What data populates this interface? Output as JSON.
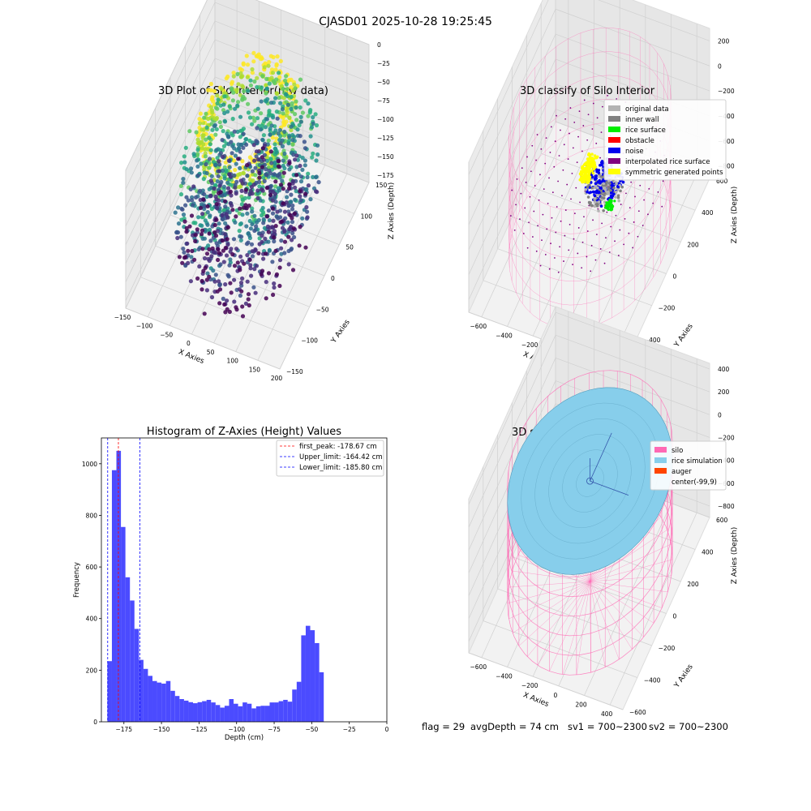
{
  "suptitle": "CJASD01 2025-10-28 19:25:45",
  "footer": {
    "flag": "flag = 29",
    "avg_depth": "avgDepth = 74 cm",
    "sv1": "sv1 = 700~2300",
    "sv2": "sv2 = 700~2300"
  },
  "colors": {
    "histogram": "#4b4bff",
    "first_peak_line": "#ff0000",
    "limit_line": "#0000ff",
    "silo": "#ff69b4",
    "rice_simulation": "#87ceeb",
    "auger": "#ff4500",
    "classify_original": "#b3b3b3",
    "classify_inner_wall": "#808080",
    "classify_rice_surface": "#00ee00",
    "classify_obstacle": "#ff0000",
    "classify_noise": "#0000ee",
    "classify_interpolated": "#800080",
    "classify_symmetric": "#ffff00"
  },
  "chart_data": [
    {
      "id": "raw",
      "type": "scatter",
      "projection": "3d",
      "title": "3D Plot of Silo Interior(row data)",
      "xlabel": "X Axies",
      "ylabel": "Y Axies",
      "zlabel": "Z Axies (Depth)",
      "xlim": [
        -150,
        200
      ],
      "ylim": [
        -150,
        150
      ],
      "zlim": [
        -185,
        0
      ],
      "x_ticks": [
        -150,
        -100,
        -50,
        0,
        50,
        100,
        150,
        200
      ],
      "y_ticks": [
        -150,
        -100,
        -50,
        0,
        50,
        100,
        150
      ],
      "z_ticks": [
        0,
        -25,
        -50,
        -75,
        -100,
        -125,
        -150,
        -175
      ],
      "colormap": "viridis",
      "grid": true
    },
    {
      "id": "classify",
      "type": "scatter",
      "projection": "3d",
      "title": "3D classify of Silo Interior",
      "xlabel": "X Axies",
      "ylabel": "Y Axies",
      "zlabel": "Z Axies (Depth)",
      "xlim": [
        -700,
        500
      ],
      "ylim": [
        -600,
        600
      ],
      "zlim": [
        -900,
        300
      ],
      "x_ticks": [
        -600,
        -400,
        -200,
        0,
        200,
        400
      ],
      "y_ticks": [
        -600,
        -400,
        -200,
        0,
        200,
        400,
        600
      ],
      "z_ticks": [
        200,
        0,
        -200,
        -400,
        -600,
        -800
      ],
      "legend_position": "upper-right",
      "legend": [
        {
          "label": "original data",
          "color": "#b3b3b3"
        },
        {
          "label": "inner wall",
          "color": "#808080"
        },
        {
          "label": "rice surface",
          "color": "#00ee00"
        },
        {
          "label": "obstacle",
          "color": "#ff0000"
        },
        {
          "label": "noise",
          "color": "#0000ee"
        },
        {
          "label": "interpolated rice surface",
          "color": "#800080"
        },
        {
          "label": "symmetric generated points",
          "color": "#ffff00"
        }
      ],
      "grid": true
    },
    {
      "id": "hist",
      "type": "bar",
      "title": "Histogram of Z-Axies (Height) Values",
      "xlabel": "Depth (cm)",
      "ylabel": "Frequency",
      "xlim": [
        -190,
        0
      ],
      "ylim": [
        0,
        1100
      ],
      "x_ticks": [
        -175,
        -150,
        -125,
        -100,
        -75,
        -50,
        -25,
        0
      ],
      "y_ticks": [
        0,
        200,
        400,
        600,
        800,
        1000
      ],
      "bin_start": -186,
      "bin_width": 3,
      "values": [
        235,
        975,
        1050,
        755,
        560,
        470,
        360,
        240,
        205,
        178,
        158,
        152,
        148,
        158,
        120,
        100,
        88,
        82,
        76,
        72,
        76,
        80,
        85,
        75,
        65,
        55,
        62,
        88,
        70,
        60,
        75,
        70,
        52,
        60,
        62,
        62,
        75,
        75,
        80,
        85,
        78,
        125,
        155,
        335,
        372,
        355,
        305,
        192
      ],
      "vlines": [
        {
          "x": -178.67,
          "label": "first_peak: -178.67 cm",
          "color": "#ff0000"
        },
        {
          "x": -164.42,
          "label": "Upper_limit: -164.42 cm",
          "color": "#0000ff"
        },
        {
          "x": -185.8,
          "label": "Lower_limit: -185.80 cm",
          "color": "#0000ff"
        }
      ],
      "legend_position": "upper-right",
      "grid": false
    },
    {
      "id": "sim",
      "type": "surface",
      "projection": "3d",
      "title": "3D simulation of Silo Interior",
      "xlabel": "X Axies",
      "ylabel": "Y Axies",
      "zlabel": "Z Axies (Depth)",
      "xlim": [
        -700,
        500
      ],
      "ylim": [
        -600,
        600
      ],
      "zlim": [
        -900,
        450
      ],
      "x_ticks": [
        -600,
        -400,
        -200,
        0,
        200,
        400
      ],
      "y_ticks": [
        -600,
        -400,
        -200,
        0,
        200,
        400,
        600
      ],
      "z_ticks": [
        400,
        200,
        0,
        -200,
        -400,
        -600,
        -800
      ],
      "legend_position": "upper-right",
      "legend": [
        {
          "label": "silo",
          "color": "#ff69b4"
        },
        {
          "label": "rice simulation",
          "color": "#87ceeb"
        },
        {
          "label": "auger",
          "color": "#ff4500"
        },
        {
          "label": "center(-99,9)",
          "color": ""
        }
      ],
      "grid": true
    }
  ]
}
